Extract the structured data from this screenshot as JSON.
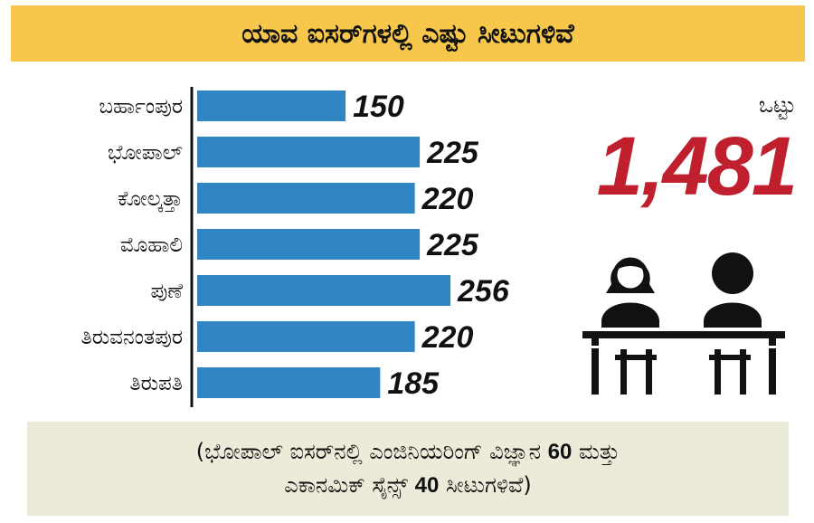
{
  "title": "ಯಾವ ಐಸರ್‌ಗಳಲ್ಲಿ ಎಷ್ಟು ಸೀಟುಗಳಿವೆ",
  "total": {
    "label": "ಒಟ್ಟು",
    "value": "1,481"
  },
  "colors": {
    "bar": "#2f86c2",
    "title_bg": "#f6c74a",
    "total": "#c0202e",
    "note_bg": "#ecebd9"
  },
  "chart_data": {
    "type": "bar",
    "orientation": "horizontal",
    "categories": [
      "ಬರ್ಹಾಂಪುರ",
      "ಭೋಪಾಲ್",
      "ಕೋಲ್ಕತ್ತಾ",
      "ಮೊಹಾಲಿ",
      "ಪುಣೆ",
      "ತಿರುವನಂತಪುರ",
      "ತಿರುಪತಿ"
    ],
    "values": [
      150,
      225,
      220,
      225,
      256,
      220,
      185
    ],
    "value_labels": [
      "150",
      "225",
      "220",
      "225",
      "256",
      "220",
      "185"
    ],
    "xlim": [
      0,
      256
    ],
    "grid": false,
    "legend": "none"
  },
  "note": {
    "line1_before": "(ಭೋಪಾಲ್ ಐಸರ್‌ನಲ್ಲಿ ಎಂಜಿನಿಯರಿಂಗ್ ವಿಜ್ಞಾನ ",
    "line1_num": "60",
    "line1_after": " ಮತ್ತು",
    "line2_before": "ಎಕಾನಮಿಕ್ ಸೈನ್ಸ್ ",
    "line2_num": "40",
    "line2_after": " ಸೀಟುಗಳಿವೆ)"
  }
}
